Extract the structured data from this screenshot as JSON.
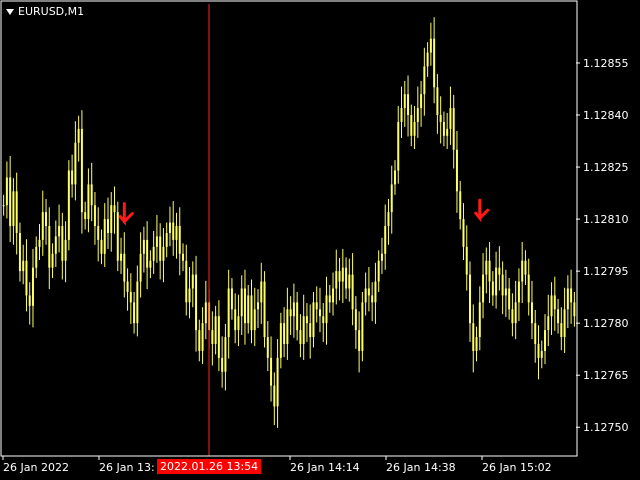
{
  "header": {
    "symbol_label": "EURUSD,M1",
    "menu_icon": "dropdown-triangle-icon"
  },
  "colors": {
    "background": "#000000",
    "candle": "#ffff66",
    "grid": "#ffffff",
    "text": "#ffffff",
    "vline": "#ff2222",
    "arrow": "#ff1a1a",
    "time_label_bg": "#ff0000"
  },
  "crosshair_time_label": "2022.01.26 13:54",
  "chart_data": {
    "type": "candlestick",
    "ylim": [
      1.12742,
      1.12872
    ],
    "y_ticks": [
      "1.12855",
      "1.12840",
      "1.12825",
      "1.12810",
      "1.12795",
      "1.12780",
      "1.12765",
      "1.12750"
    ],
    "x_tick_labels": [
      "26 Jan 2022",
      "26 Jan 13:",
      "26 Jan 14:14",
      "26 Jan 14:38",
      "26 Jan 15:02"
    ],
    "series": [
      {
        "values": [
          1.12814,
          1.12822,
          1.12808,
          1.12818,
          1.12806,
          1.12795,
          1.12798,
          1.12788,
          1.12785,
          1.12796,
          1.12802,
          1.12804,
          1.12812,
          1.12808,
          1.12796,
          1.128,
          1.12805,
          1.12808,
          1.12798,
          1.12804,
          1.12824,
          1.1282,
          1.12832,
          1.12836,
          1.12812,
          1.1281,
          1.1282,
          1.12814,
          1.12808,
          1.12804,
          1.128,
          1.1281,
          1.12806,
          1.12814,
          1.12812,
          1.12798,
          1.128,
          1.12792,
          1.12789,
          1.12786,
          1.1278,
          1.12792,
          1.128,
          1.12804,
          1.12796,
          1.12798,
          1.12802,
          1.12805,
          1.12798,
          1.12802,
          1.12806,
          1.12809,
          1.12804,
          1.12808,
          1.128,
          1.12798,
          1.12786,
          1.1279,
          1.12794,
          1.12778,
          1.12772,
          1.1278,
          1.12786,
          1.12778,
          1.12774,
          1.12782,
          1.1277,
          1.12766,
          1.12776,
          1.1279,
          1.12784,
          1.12778,
          1.12782,
          1.1279,
          1.1278,
          1.12788,
          1.12778,
          1.12784,
          1.12786,
          1.12792,
          1.12776,
          1.1277,
          1.12762,
          1.12756,
          1.1277,
          1.1278,
          1.12774,
          1.12784,
          1.12782,
          1.12786,
          1.12778,
          1.12774,
          1.12782,
          1.1278,
          1.12776,
          1.12786,
          1.12784,
          1.12782,
          1.1278,
          1.12788,
          1.12786,
          1.1279,
          1.12795,
          1.12792,
          1.12796,
          1.1279,
          1.12794,
          1.12784,
          1.12778,
          1.12772,
          1.12786,
          1.1279,
          1.12788,
          1.12786,
          1.12792,
          1.12798,
          1.128,
          1.12808,
          1.12812,
          1.1282,
          1.12824,
          1.12838,
          1.12842,
          1.12846,
          1.1284,
          1.12834,
          1.12838,
          1.12842,
          1.12846,
          1.12854,
          1.12858,
          1.12862,
          1.12848,
          1.1284,
          1.12838,
          1.12834,
          1.12836,
          1.12842,
          1.1283,
          1.12818,
          1.1281,
          1.12802,
          1.12794,
          1.1278,
          1.12772,
          1.12776,
          1.12786,
          1.12794,
          1.12798,
          1.12792,
          1.12788,
          1.12796,
          1.12794,
          1.12788,
          1.1279,
          1.12784,
          1.1278,
          1.12786,
          1.12792,
          1.12798,
          1.12794,
          1.12786,
          1.1278,
          1.12774,
          1.1277,
          1.12772,
          1.12778,
          1.12782,
          1.12788,
          1.12784,
          1.1278,
          1.12776,
          1.12784,
          1.1279,
          1.12786,
          1.12782
        ]
      }
    ],
    "sell_signals": [
      {
        "index": 37,
        "price": 1.12811
      },
      {
        "index": 146,
        "price": 1.12812
      }
    ],
    "vertical_marker_index": 63
  }
}
